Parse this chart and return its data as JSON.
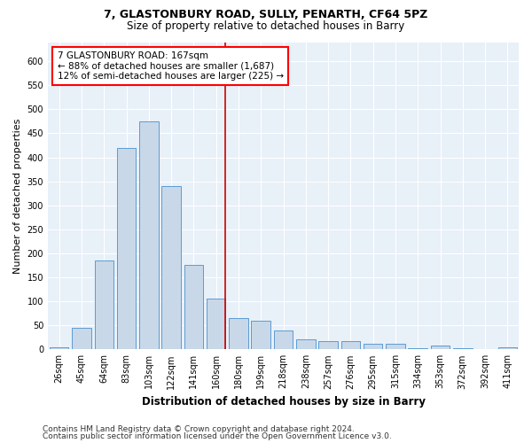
{
  "title1": "7, GLASTONBURY ROAD, SULLY, PENARTH, CF64 5PZ",
  "title2": "Size of property relative to detached houses in Barry",
  "xlabel": "Distribution of detached houses by size in Barry",
  "ylabel": "Number of detached properties",
  "categories": [
    "26sqm",
    "45sqm",
    "64sqm",
    "83sqm",
    "103sqm",
    "122sqm",
    "141sqm",
    "160sqm",
    "180sqm",
    "199sqm",
    "218sqm",
    "238sqm",
    "257sqm",
    "276sqm",
    "295sqm",
    "315sqm",
    "334sqm",
    "353sqm",
    "372sqm",
    "392sqm",
    "411sqm"
  ],
  "values": [
    5,
    45,
    185,
    420,
    475,
    340,
    175,
    105,
    65,
    60,
    40,
    20,
    18,
    18,
    12,
    12,
    3,
    8,
    3,
    1,
    5
  ],
  "bar_color": "#c8d8e8",
  "bar_edge_color": "#5b9bd5",
  "red_line_x": 7.42,
  "annotation_text": "7 GLASTONBURY ROAD: 167sqm\n← 88% of detached houses are smaller (1,687)\n12% of semi-detached houses are larger (225) →",
  "annotation_box_color": "white",
  "annotation_box_edge_color": "red",
  "red_line_color": "#cc0000",
  "footer1": "Contains HM Land Registry data © Crown copyright and database right 2024.",
  "footer2": "Contains public sector information licensed under the Open Government Licence v3.0.",
  "ylim": [
    0,
    640
  ],
  "yticks": [
    0,
    50,
    100,
    150,
    200,
    250,
    300,
    350,
    400,
    450,
    500,
    550,
    600
  ],
  "background_color": "#e8f0f8",
  "grid_color": "white",
  "title1_fontsize": 9,
  "title2_fontsize": 8.5,
  "xlabel_fontsize": 8.5,
  "ylabel_fontsize": 8,
  "tick_fontsize": 7,
  "annotation_fontsize": 7.5,
  "footer_fontsize": 6.5
}
